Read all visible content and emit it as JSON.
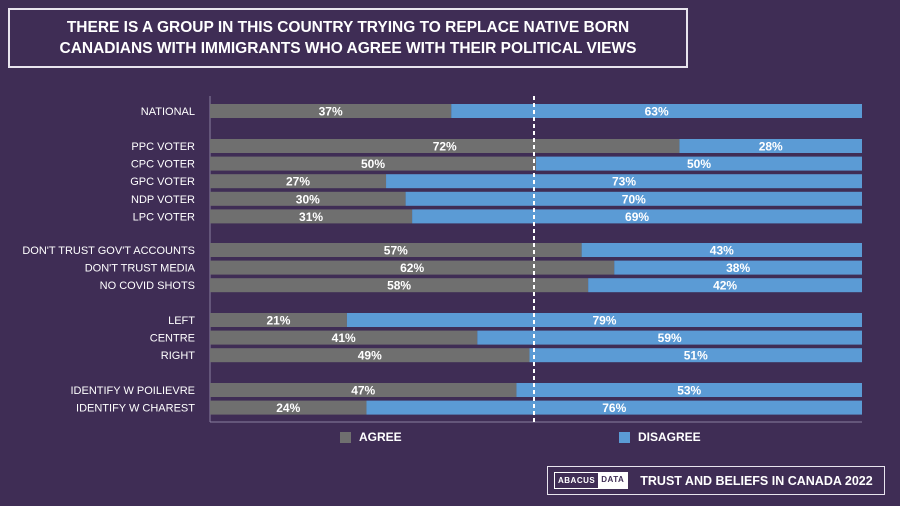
{
  "title": {
    "line1": "THERE IS A GROUP IN THIS COUNTRY TRYING TO REPLACE NATIVE BORN",
    "line2": "CANADIANS WITH IMMIGRANTS WHO AGREE WITH THEIR POLITICAL VIEWS"
  },
  "legend": {
    "agree": "AGREE",
    "disagree": "DISAGREE"
  },
  "footer": {
    "logo_left": "ABACUS",
    "logo_right": "DATA",
    "text": "TRUST AND BELIEFS IN CANADA 2022"
  },
  "colors": {
    "agree": "#6f6f6f",
    "disagree": "#5b9bd5",
    "background": "#3f2d55"
  },
  "chart_data": {
    "type": "bar",
    "orientation": "horizontal",
    "stacked": true,
    "unit": "%",
    "reference_line": 50,
    "categories": [
      "NATIONAL",
      "PPC VOTER",
      "CPC VOTER",
      "GPC VOTER",
      "NDP VOTER",
      "LPC VOTER",
      "DON'T TRUST GOV'T ACCOUNTS",
      "DON'T TRUST MEDIA",
      "NO COVID SHOTS",
      "LEFT",
      "CENTRE",
      "RIGHT",
      "IDENTIFY W POILIEVRE",
      "IDENTIFY W CHAREST"
    ],
    "groups": [
      [
        0
      ],
      [
        1,
        2,
        3,
        4,
        5
      ],
      [
        6,
        7,
        8
      ],
      [
        9,
        10,
        11
      ],
      [
        12,
        13
      ]
    ],
    "series": [
      {
        "name": "AGREE",
        "values": [
          37,
          72,
          50,
          27,
          30,
          31,
          57,
          62,
          58,
          21,
          41,
          49,
          47,
          24
        ]
      },
      {
        "name": "DISAGREE",
        "values": [
          63,
          28,
          50,
          73,
          70,
          69,
          43,
          38,
          42,
          79,
          59,
          51,
          53,
          76
        ]
      }
    ]
  }
}
